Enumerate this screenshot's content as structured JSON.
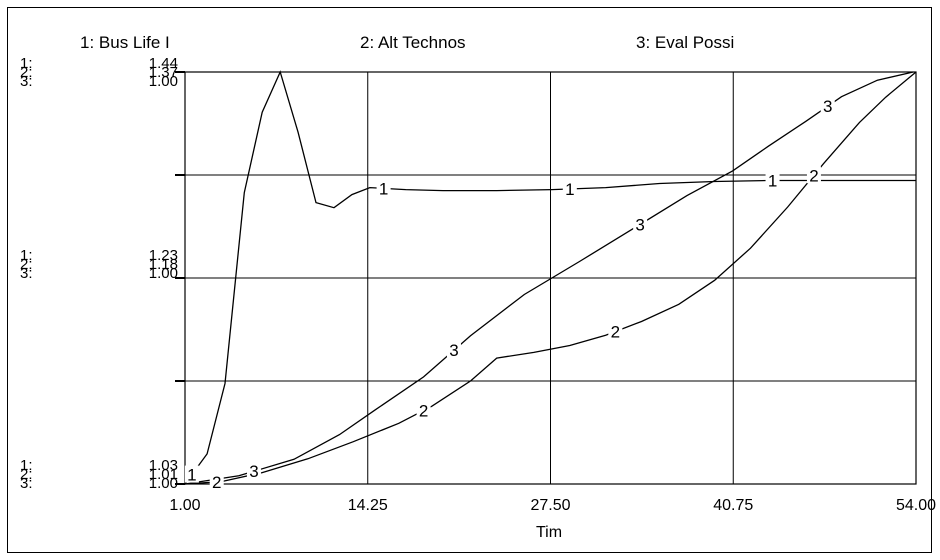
{
  "chart_data": {
    "type": "line",
    "legend_position": "top",
    "grid": true,
    "xlabel": "Tim",
    "x_ticks": [
      "1.00",
      "14.25",
      "27.50",
      "40.75",
      "54.00"
    ],
    "xlim": [
      1.0,
      54.0
    ],
    "left_scales": [
      {
        "row_labels": [
          "1:",
          "2:",
          "3:"
        ],
        "values": [
          "1.44",
          "1.37",
          "1.00"
        ]
      },
      {
        "row_labels": [
          "1:",
          "2:",
          "3:"
        ],
        "values": [
          "1.23",
          "1.18",
          "1.00"
        ]
      },
      {
        "row_labels": [
          "1:",
          "2:",
          "3:"
        ],
        "values": [
          "1.03",
          "1.01",
          "1.00"
        ]
      }
    ],
    "series": [
      {
        "name": "1: Bus Life I",
        "marker": "1",
        "ylim": [
          1.03,
          1.44
        ],
        "x": [
          1.0,
          2.6,
          3.9,
          5.3,
          6.6,
          7.9,
          9.2,
          10.5,
          11.8,
          13.1,
          14.4,
          17.0,
          19.7,
          23.6,
          27.6,
          31.5,
          35.4,
          39.4,
          43.3,
          47.2,
          51.1,
          54.0
        ],
        "y": [
          1.03,
          1.06,
          1.13,
          1.32,
          1.4,
          1.44,
          1.38,
          1.31,
          1.305,
          1.318,
          1.325,
          1.323,
          1.322,
          1.322,
          1.323,
          1.325,
          1.329,
          1.331,
          1.332,
          1.332,
          1.332,
          1.332
        ],
        "label_x": [
          1.5,
          15.4,
          28.9,
          43.6
        ]
      },
      {
        "name": "2: Alt Technos",
        "marker": "2",
        "ylim": [
          1.01,
          1.37
        ],
        "x": [
          1.0,
          3.6,
          6.6,
          9.9,
          13.2,
          16.5,
          18.9,
          21.7,
          23.6,
          26.3,
          28.9,
          31.5,
          34.1,
          36.8,
          39.4,
          42.0,
          44.7,
          47.3,
          49.9,
          51.8,
          54.0
        ],
        "y": [
          1.01,
          1.012,
          1.02,
          1.032,
          1.047,
          1.063,
          1.078,
          1.1,
          1.12,
          1.125,
          1.131,
          1.14,
          1.152,
          1.167,
          1.188,
          1.216,
          1.252,
          1.29,
          1.326,
          1.348,
          1.37
        ],
        "label_x": [
          3.3,
          18.3,
          32.2,
          46.6
        ]
      },
      {
        "name": "3: Eval Possi",
        "marker": "3",
        "ylim": [
          1.0,
          1.00005
        ],
        "x": [
          1.0,
          4.9,
          8.9,
          12.2,
          14.8,
          18.3,
          21.7,
          25.6,
          29.6,
          33.5,
          37.4,
          40.7,
          43.3,
          46.0,
          48.6,
          51.2,
          53.8
        ],
        "y": [
          1.0,
          1.000001,
          1.000003,
          1.000006,
          1.000009,
          1.000013,
          1.000018,
          1.000023,
          1.000027,
          1.000031,
          1.000035,
          1.000038,
          1.000041,
          1.000044,
          1.000047,
          1.000049,
          1.00005
        ],
        "label_x": [
          6.0,
          20.5,
          34.0,
          47.6
        ]
      }
    ]
  }
}
